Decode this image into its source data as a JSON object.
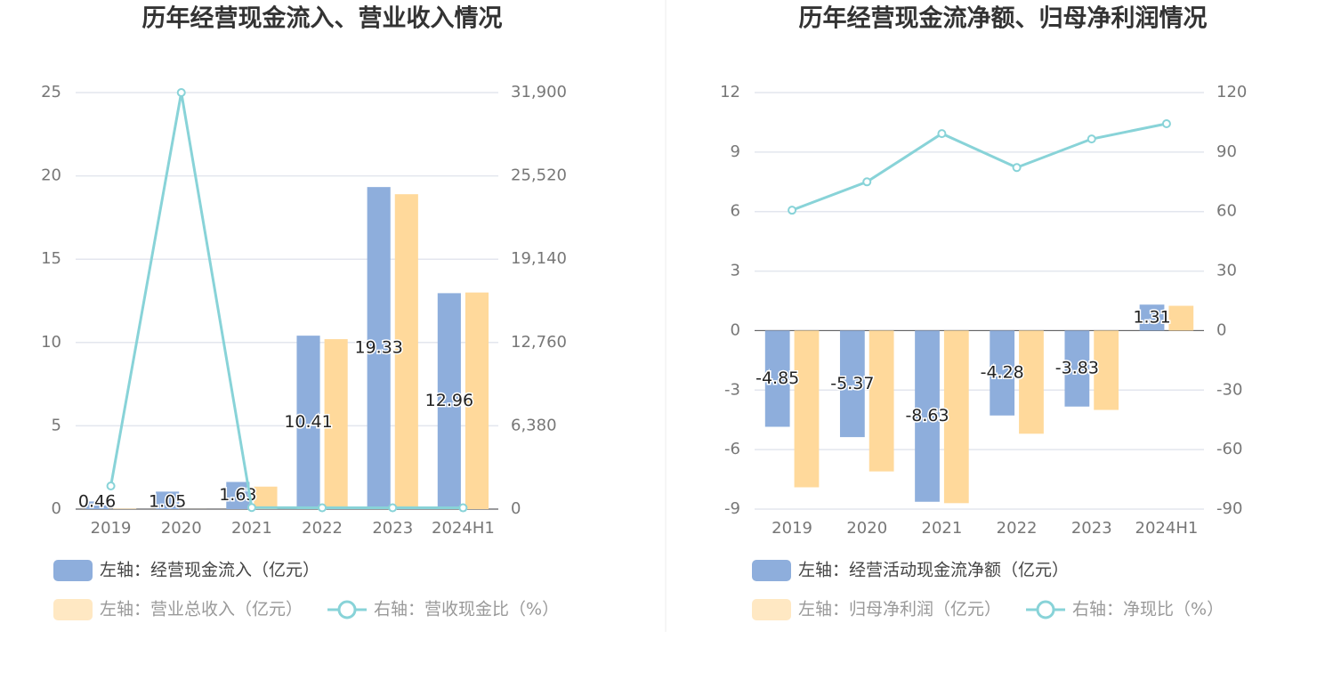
{
  "chart_data": [
    {
      "type": "bar",
      "title": "历年经营现金流入、营业收入情况",
      "categories": [
        "2019",
        "2020",
        "2021",
        "2022",
        "2023",
        "2024H1"
      ],
      "series": [
        {
          "name": "左轴：经营现金流入（亿元）",
          "color": "#8eaedc",
          "values": [
            0.46,
            1.05,
            1.63,
            10.41,
            19.33,
            12.96
          ],
          "data_labels": true
        },
        {
          "name": "左轴：营业总收入（亿元）",
          "color": "#ffd99b",
          "values": [
            0.026,
            0.0033,
            1.35,
            10.2,
            18.9,
            13.0
          ]
        },
        {
          "name": "右轴：营收现金比（%）",
          "color": "#88d3d8",
          "type": "line",
          "axis": "y2",
          "values": [
            1772,
            31900,
            120,
            102,
            102,
            100
          ]
        }
      ],
      "ylim": [
        0,
        25
      ],
      "yticks": [
        0,
        5,
        10,
        15,
        20,
        25
      ],
      "y2lim": [
        0,
        31900
      ],
      "y2ticks": [
        0,
        {
          "value": 6380,
          "label": "6,380"
        },
        {
          "value": 12760,
          "label": "12,760"
        },
        {
          "value": 19140,
          "label": "19,140"
        },
        {
          "value": 25520,
          "label": "25,520"
        },
        {
          "value": 31900,
          "label": "31,900"
        }
      ],
      "grid": true
    },
    {
      "type": "bar",
      "title": "历年经营现金流净额、归母净利润情况",
      "categories": [
        "2019",
        "2020",
        "2021",
        "2022",
        "2023",
        "2024H1"
      ],
      "series": [
        {
          "name": "左轴：经营活动现金流净额（亿元）",
          "color": "#8eaedc",
          "values": [
            -4.85,
            -5.37,
            -8.63,
            -4.28,
            -3.83,
            1.31
          ],
          "data_labels": true
        },
        {
          "name": "左轴：归母净利润（亿元）",
          "color": "#ffd99b",
          "values": [
            -7.9,
            -7.1,
            -8.7,
            -5.2,
            -4.0,
            1.25
          ]
        },
        {
          "name": "右轴：净现比（%）",
          "color": "#88d3d8",
          "type": "line",
          "axis": "y2",
          "values": [
            60.7,
            75,
            99.3,
            82.2,
            96.6,
            104.3
          ]
        }
      ],
      "ylim": [
        -9,
        12
      ],
      "yticks": [
        -9,
        -6,
        -3,
        0,
        3,
        6,
        9,
        12
      ],
      "y2lim": [
        -90,
        120
      ],
      "y2ticks": [
        -90,
        -60,
        -30,
        0,
        30,
        60,
        90,
        120
      ],
      "grid": true
    }
  ]
}
